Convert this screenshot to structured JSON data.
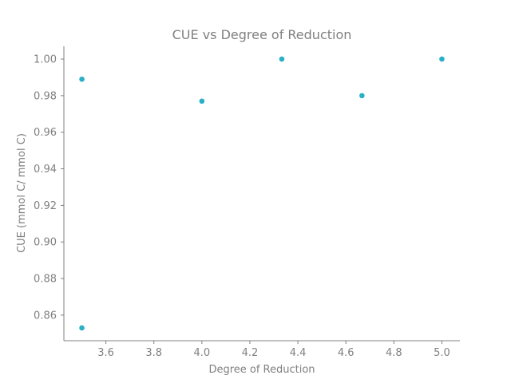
{
  "chart_data": {
    "type": "scatter",
    "title": "CUE vs Degree of Reduction",
    "xlabel": "Degree of Reduction",
    "ylabel": "CUE (mmol C/ mmol C)",
    "xlim": [
      3.425,
      5.075
    ],
    "ylim": [
      0.846,
      1.007
    ],
    "x_ticks": [
      3.6,
      3.8,
      4.0,
      4.2,
      4.4,
      4.6,
      4.8,
      5.0
    ],
    "x_tick_labels": [
      "3.6",
      "3.8",
      "4.0",
      "4.2",
      "4.4",
      "4.6",
      "4.8",
      "5.0"
    ],
    "y_ticks": [
      0.86,
      0.88,
      0.9,
      0.92,
      0.94,
      0.96,
      0.98,
      1.0
    ],
    "y_tick_labels": [
      "0.86",
      "0.88",
      "0.90",
      "0.92",
      "0.94",
      "0.96",
      "0.98",
      "1.00"
    ],
    "grid": false,
    "spines": "left-bottom",
    "marker_color": "#2ab0c5",
    "points": [
      {
        "x": 3.5,
        "y": 0.989
      },
      {
        "x": 3.5,
        "y": 0.853
      },
      {
        "x": 4.0,
        "y": 0.977
      },
      {
        "x": 4.333,
        "y": 1.0
      },
      {
        "x": 4.667,
        "y": 0.98
      },
      {
        "x": 5.0,
        "y": 1.0
      }
    ]
  }
}
